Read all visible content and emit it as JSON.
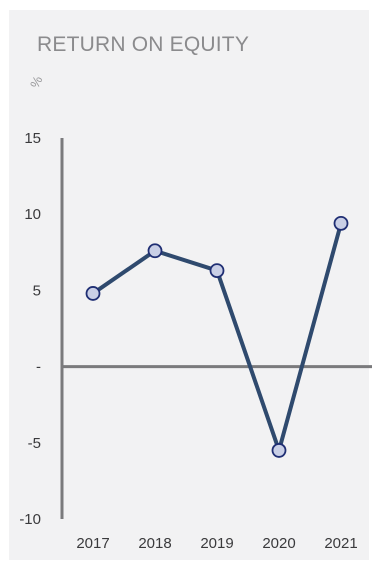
{
  "chart_data": {
    "type": "line",
    "title": "RETURN ON EQUITY",
    "ylabel": "%",
    "xlabel": "",
    "categories": [
      "2017",
      "2018",
      "2019",
      "2020",
      "2021"
    ],
    "series": [
      {
        "values": [
          4.8,
          7.6,
          6.3,
          -5.5,
          9.4
        ]
      }
    ],
    "ylim": [
      -10,
      15
    ],
    "yticks": [
      15,
      10,
      5,
      0,
      -5,
      -10
    ],
    "ytick_labels": [
      "15",
      "10",
      "5",
      "-",
      "-5",
      "-10"
    ],
    "grid": false,
    "legend": "none",
    "colors": {
      "line": "#2f4a6e",
      "marker_fill": "#c9cfe6",
      "marker_stroke": "#1f2e73",
      "axis": "#7a7a7c",
      "background": "#f2f2f3"
    }
  }
}
